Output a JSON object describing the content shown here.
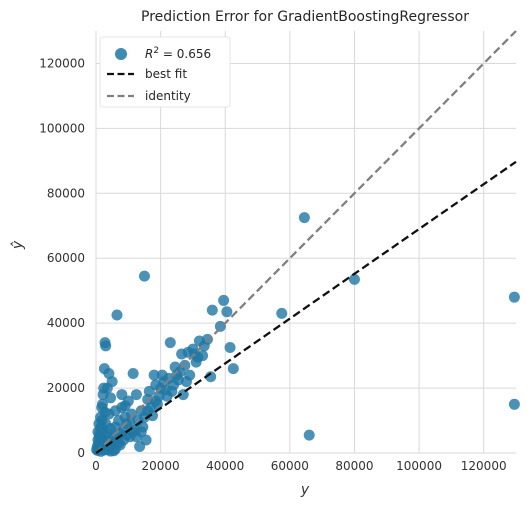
{
  "chart_data": {
    "type": "scatter",
    "title": "Prediction Error for GradientBoostingRegressor",
    "xlabel": "y",
    "ylabel": "ŷ",
    "xlim": [
      0,
      130000
    ],
    "ylim": [
      0,
      130000
    ],
    "x_ticks": [
      0,
      20000,
      40000,
      60000,
      80000,
      100000,
      120000
    ],
    "y_ticks": [
      0,
      20000,
      40000,
      60000,
      80000,
      100000,
      120000
    ],
    "grid": true,
    "legend": {
      "position": "top-left",
      "entries": [
        {
          "label_main": "R",
          "label_sup": "2",
          "label_rest": " = 0.656",
          "kind": "marker"
        },
        {
          "label": "best fit",
          "kind": "dashed-line"
        },
        {
          "label": "identity",
          "kind": "dashed-line"
        }
      ]
    },
    "colors": {
      "points": "#1f77a4",
      "best_fit": "#111111",
      "identity": "#808080",
      "grid": "#d9d9d9",
      "legend_bg": "#ffffff"
    },
    "best_fit_line": {
      "slope": 0.69,
      "intercept": 0
    },
    "identity_line": {
      "slope": 1,
      "intercept": 0
    },
    "points": [
      [
        129500,
        48000
      ],
      [
        129500,
        15000
      ],
      [
        80000,
        53500
      ],
      [
        64500,
        72500
      ],
      [
        66000,
        5500
      ],
      [
        57500,
        43000
      ],
      [
        42500,
        26000
      ],
      [
        41500,
        32500
      ],
      [
        40500,
        43500
      ],
      [
        39500,
        47000
      ],
      [
        36000,
        44000
      ],
      [
        35500,
        23500
      ],
      [
        38500,
        39000
      ],
      [
        33500,
        33000
      ],
      [
        33000,
        30000
      ],
      [
        32000,
        34500
      ],
      [
        31000,
        28000
      ],
      [
        30000,
        32000
      ],
      [
        29000,
        24000
      ],
      [
        28000,
        22000
      ],
      [
        27000,
        18000
      ],
      [
        26000,
        25000
      ],
      [
        25000,
        24000
      ],
      [
        24000,
        21000
      ],
      [
        23000,
        34000
      ],
      [
        23500,
        19000
      ],
      [
        22000,
        17500
      ],
      [
        21000,
        22000
      ],
      [
        20000,
        20000
      ],
      [
        19000,
        15000
      ],
      [
        18500,
        21000
      ],
      [
        18000,
        24000
      ],
      [
        17000,
        14000
      ],
      [
        16500,
        19000
      ],
      [
        16000,
        16500
      ],
      [
        15500,
        4000
      ],
      [
        15000,
        11000
      ],
      [
        14500,
        8000
      ],
      [
        14000,
        13000
      ],
      [
        13500,
        2000
      ],
      [
        13000,
        10000
      ],
      [
        12500,
        18000
      ],
      [
        12000,
        7000
      ],
      [
        11500,
        24500
      ],
      [
        11000,
        12000
      ],
      [
        10500,
        5000
      ],
      [
        10000,
        16000
      ],
      [
        9500,
        9000
      ],
      [
        9000,
        11000
      ],
      [
        8500,
        7000
      ],
      [
        8000,
        14000
      ],
      [
        7500,
        6000
      ],
      [
        7000,
        10000
      ],
      [
        6500,
        42500
      ],
      [
        6000,
        8000
      ],
      [
        5500,
        5000
      ],
      [
        5000,
        22000
      ],
      [
        4500,
        17000
      ],
      [
        4000,
        12000
      ],
      [
        3500,
        6000
      ],
      [
        3000,
        33000
      ],
      [
        2800,
        34000
      ],
      [
        2600,
        26000
      ],
      [
        2400,
        20000
      ],
      [
        2200,
        18000
      ],
      [
        2000,
        15000
      ],
      [
        1800,
        10000
      ],
      [
        1600,
        8000
      ],
      [
        1400,
        11000
      ],
      [
        1200,
        6000
      ],
      [
        1000,
        5000
      ],
      [
        800,
        3000
      ],
      [
        600,
        4000
      ],
      [
        400,
        2000
      ],
      [
        200,
        1000
      ],
      [
        15000,
        54500
      ],
      [
        2000,
        7000
      ],
      [
        3000,
        9000
      ],
      [
        4500,
        7500
      ],
      [
        5500,
        3000
      ],
      [
        6500,
        4500
      ],
      [
        7500,
        2500
      ],
      [
        8500,
        4000
      ],
      [
        9500,
        5500
      ],
      [
        10500,
        9500
      ],
      [
        11500,
        6500
      ],
      [
        12500,
        5000
      ],
      [
        14000,
        6500
      ],
      [
        1500,
        3000
      ],
      [
        2500,
        2000
      ],
      [
        3500,
        3500
      ],
      [
        4000,
        1500
      ],
      [
        5000,
        2500
      ],
      [
        6000,
        1200
      ],
      [
        7000,
        3000
      ],
      [
        1000,
        1500
      ],
      [
        500,
        800
      ],
      [
        1500,
        500
      ],
      [
        2500,
        900
      ],
      [
        3500,
        1100
      ],
      [
        4500,
        600
      ],
      [
        5500,
        700
      ],
      [
        2000,
        4500
      ],
      [
        3000,
        5200
      ],
      [
        1200,
        2600
      ],
      [
        16000,
        13000
      ],
      [
        17500,
        11500
      ],
      [
        18500,
        16000
      ],
      [
        19500,
        17500
      ],
      [
        21500,
        19500
      ],
      [
        22500,
        23000
      ],
      [
        24500,
        26500
      ],
      [
        26500,
        30500
      ],
      [
        28500,
        31000
      ],
      [
        30500,
        30500
      ],
      [
        31500,
        29500
      ],
      [
        34500,
        35000
      ],
      [
        27500,
        27000
      ],
      [
        25500,
        22500
      ],
      [
        20500,
        24000
      ],
      [
        9000,
        14500
      ],
      [
        6000,
        13000
      ],
      [
        4000,
        24500
      ],
      [
        3500,
        20000
      ],
      [
        8000,
        18000
      ],
      [
        2800,
        12500
      ],
      [
        1800,
        14000
      ],
      [
        900,
        9000
      ],
      [
        600,
        6500
      ],
      [
        1400,
        7500
      ]
    ]
  }
}
